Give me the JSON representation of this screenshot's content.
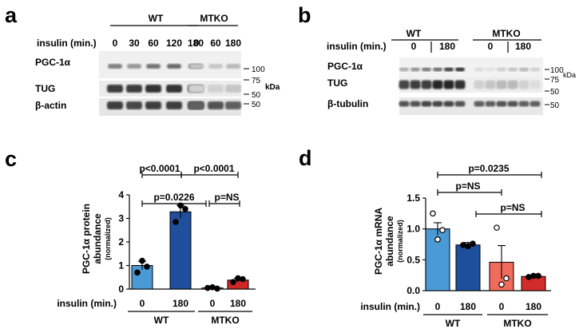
{
  "panels": {
    "a": {
      "letter": "a",
      "group_wt": "WT",
      "group_mtko": "MTKO",
      "insulin_label": "insulin (min.)",
      "lanes": [
        "0",
        "30",
        "60",
        "120",
        "180",
        "0",
        "60",
        "180"
      ],
      "rows": [
        "PGC-1α",
        "TUG",
        "β-actin"
      ],
      "markers": [
        "100",
        "75",
        "50",
        "50"
      ],
      "unit": "kDa"
    },
    "b": {
      "letter": "b",
      "group_wt": "WT",
      "group_mtko": "MTKO",
      "insulin_label": "insulin (min.)",
      "lanes": [
        "0",
        "180",
        "0",
        "180"
      ],
      "rows": [
        "PGC-1α",
        "TUG",
        "β-tubulin"
      ],
      "markers": [
        "100",
        "75",
        "50",
        "50"
      ],
      "unit": "kDa"
    },
    "c": {
      "letter": "c"
    },
    "d": {
      "letter": "d"
    }
  },
  "chart_data": [
    {
      "type": "bar",
      "panel": "c",
      "ylabel": "PGC-1α protein abundance",
      "ylabel_sub": "(normalized)",
      "ylim": [
        0,
        4
      ],
      "yticks": [
        "0",
        "1",
        "2",
        "3",
        "4"
      ],
      "x_title": "insulin (min.)",
      "categories": [
        "0",
        "180",
        "0",
        "180"
      ],
      "groups": [
        "WT",
        "MTKO"
      ],
      "values": [
        1.0,
        3.28,
        0.05,
        0.38
      ],
      "errors": [
        0.18,
        0.28,
        0.02,
        0.08
      ],
      "colors": [
        "#4a9ad6",
        "#1e4f9c",
        "#e55c4c",
        "#cf2727"
      ],
      "points": [
        [
          0.7,
          1.2,
          0.95
        ],
        [
          2.85,
          3.55,
          3.4
        ],
        [
          0.05,
          0.08,
          0.02
        ],
        [
          0.3,
          0.46,
          0.42
        ]
      ],
      "comparisons": [
        "p<0.0001",
        "p<0.0001",
        "p=0.0226",
        "p=NS"
      ]
    },
    {
      "type": "bar",
      "panel": "d",
      "ylabel": "PGC-1α mRNA abundance",
      "ylabel_sub": "(normalized)",
      "ylim": [
        0,
        1.5
      ],
      "yticks": [
        "0.0",
        "0.5",
        "1.0",
        "1.5"
      ],
      "x_title": "insulin (min.)",
      "categories": [
        "0",
        "180",
        "0",
        "180"
      ],
      "groups": [
        "WT",
        "MTKO"
      ],
      "values": [
        1.0,
        0.74,
        0.46,
        0.23
      ],
      "errors": [
        0.1,
        0.04,
        0.27,
        0.02
      ],
      "colors": [
        "#4a9ad6",
        "#1e4f9c",
        "#f06b5b",
        "#d22b2b"
      ],
      "points": [
        [
          1.25,
          0.83,
          0.98
        ],
        [
          0.74,
          0.72,
          0.76
        ],
        [
          1.02,
          0.1,
          0.2
        ],
        [
          0.22,
          0.24,
          0.24
        ]
      ],
      "comparisons": [
        "p=0.0235",
        "p=NS",
        "p=NS"
      ]
    }
  ]
}
